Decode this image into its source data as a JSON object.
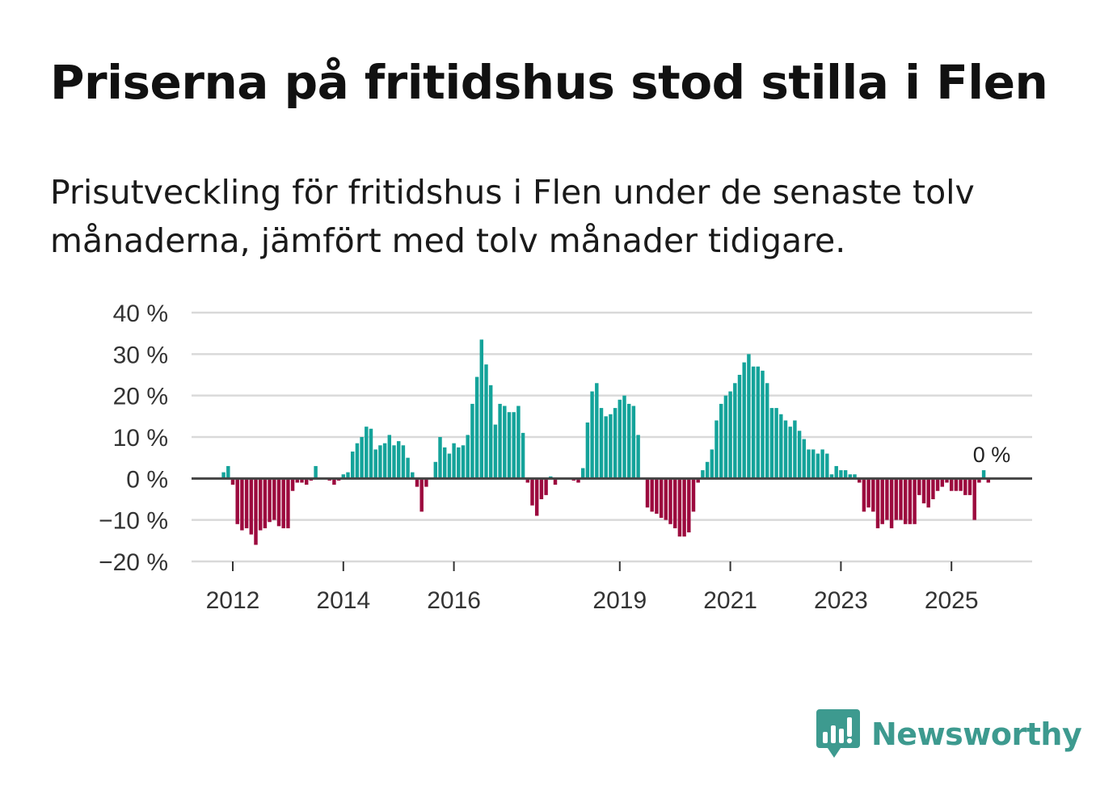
{
  "title": "Priserna på fritidshus stod stilla i Flen",
  "subtitle": "Prisutveckling för fritidshus i Flen under de senaste tolv månaderna, jämfört med tolv månader tidigare.",
  "brand": {
    "name": "Newsworthy"
  },
  "colors": {
    "positive": "#14a39a",
    "negative": "#9c0a3e",
    "grid": "#d9d9d9",
    "zero_line": "#444444",
    "brand": "#3d9a8f"
  },
  "chart_data": {
    "type": "bar",
    "title": "Priserna på fritidshus stod stilla i Flen",
    "xlabel": "",
    "ylabel": "",
    "ylim": [
      -20,
      40
    ],
    "y_ticks": [
      -20,
      -10,
      0,
      10,
      20,
      30,
      40
    ],
    "y_tick_labels": [
      "−20 %",
      "−10 %",
      "0 %",
      "10 %",
      "20 %",
      "30 %",
      "40 %"
    ],
    "x_tick_labels": [
      "2012",
      "2014",
      "2016",
      "2019",
      "2021",
      "2023",
      "2025"
    ],
    "x_tick_positions": [
      2012.0,
      2014.0,
      2016.0,
      2019.0,
      2021.0,
      2023.0,
      2025.0
    ],
    "start": 2011.0,
    "step": 0.0833333,
    "annotation": "0 %",
    "values": [
      0,
      0,
      0,
      0,
      0,
      0,
      0,
      0,
      0,
      0,
      1.5,
      3,
      -1.5,
      -11,
      -12.5,
      -12,
      -13.5,
      -16,
      -12.5,
      -12,
      -10.5,
      -10,
      -11.5,
      -12,
      -12,
      -3,
      -1,
      -1,
      -1.5,
      -0.5,
      3,
      0,
      0,
      -0.5,
      -1.5,
      -0.5,
      1,
      1.5,
      6.5,
      8.5,
      10,
      12.5,
      12,
      7,
      8,
      8.5,
      10.5,
      8,
      9,
      8,
      5,
      1.5,
      -2,
      -8,
      -2,
      0,
      4,
      10,
      7.5,
      6,
      8.5,
      7.5,
      8,
      10.5,
      18,
      24.5,
      33.5,
      27.5,
      22.5,
      13,
      18,
      17.5,
      16,
      16,
      17.5,
      11,
      -1,
      -6.5,
      -9,
      -5,
      -4,
      0.5,
      -1.5,
      0,
      0,
      0,
      -0.5,
      -1,
      2.5,
      13.5,
      21,
      23,
      17,
      15,
      15.5,
      17,
      19,
      20,
      18,
      17.5,
      10.5,
      0,
      -7,
      -8,
      -8.5,
      -9.5,
      -10,
      -11,
      -12,
      -14,
      -14,
      -13,
      -8,
      -1,
      2,
      4,
      7,
      14,
      18,
      20,
      21,
      23,
      25,
      28,
      30,
      27,
      27,
      26,
      23,
      17,
      17,
      15.5,
      14,
      12.5,
      14,
      11.5,
      9.5,
      7,
      7,
      6,
      7,
      6,
      1,
      3,
      2,
      2,
      1,
      1,
      -1,
      -8,
      -7,
      -8,
      -12,
      -11,
      -10,
      -12,
      -10,
      -10,
      -11,
      -11,
      -11,
      -4,
      -6,
      -7,
      -5,
      -3,
      -2,
      -1,
      -3,
      -3,
      -3,
      -4,
      -4,
      -10,
      -1,
      2,
      -1,
      0,
      0,
      0,
      0,
      0,
      0,
      0
    ]
  }
}
